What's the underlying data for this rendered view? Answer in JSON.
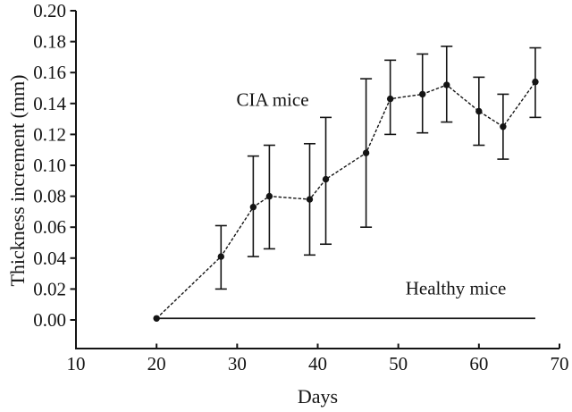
{
  "figure": {
    "background": "#ffffff",
    "ink": "#141414"
  },
  "chart_data": {
    "type": "line",
    "title": "",
    "xlabel": "Days",
    "ylabel": "Thickness increment (mm)",
    "xlim": [
      10,
      70
    ],
    "ylim": [
      0,
      0.2
    ],
    "xticks": [
      10,
      20,
      30,
      40,
      50,
      60,
      70
    ],
    "ytick_labels": [
      "0.00",
      "0.02",
      "0.04",
      "0.06",
      "0.08",
      "0.10",
      "0.12",
      "0.14",
      "0.16",
      "0.18",
      "0.20"
    ],
    "grid": false,
    "legend_position": "inline-annotations",
    "series": [
      {
        "name": "Healthy mice",
        "x": [
          20,
          67
        ],
        "y": [
          0.001,
          0.001
        ],
        "line_style": "solid",
        "marker": "none"
      },
      {
        "name": "CIA mice",
        "x": [
          20,
          28,
          32,
          34,
          39,
          41,
          46,
          49,
          53,
          56,
          60,
          63,
          67
        ],
        "y": [
          0.001,
          0.041,
          0.073,
          0.08,
          0.078,
          0.091,
          0.108,
          0.143,
          0.146,
          0.152,
          0.135,
          0.125,
          0.154
        ],
        "err_low": [
          0.001,
          0.02,
          0.041,
          0.046,
          0.042,
          0.049,
          0.06,
          0.12,
          0.121,
          0.128,
          0.113,
          0.104,
          0.131
        ],
        "err_high": [
          0.001,
          0.061,
          0.106,
          0.113,
          0.114,
          0.131,
          0.156,
          0.168,
          0.172,
          0.177,
          0.157,
          0.146,
          0.176
        ],
        "line_style": "short-dash",
        "marker": "filled-circle"
      }
    ],
    "annotations": [
      {
        "text": "CIA mice",
        "x": 34.4,
        "y": 0.142
      },
      {
        "text": "Healthy mice",
        "x": 57.1,
        "y": 0.021
      }
    ]
  }
}
